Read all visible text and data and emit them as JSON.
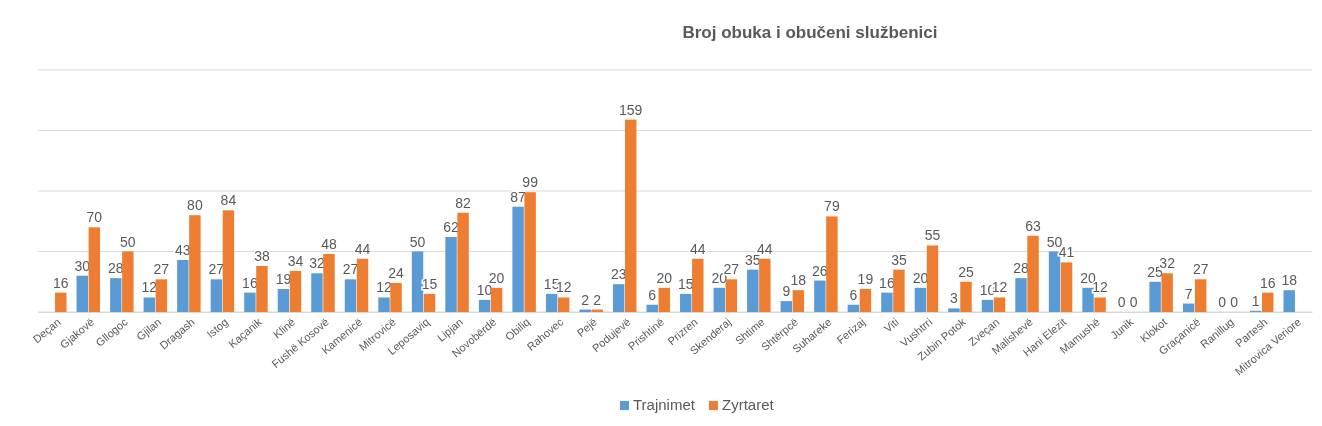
{
  "chart_data": {
    "type": "bar",
    "title": "Broj obuka i obučeni službenici",
    "categories": [
      "Deçan",
      "Gjakovë",
      "Gllogoc",
      "Gjilan",
      "Dragash",
      "Istog",
      "Kaçanik",
      "Klinë",
      "Fushë Kosovë",
      "Kamenicë",
      "Mitrovicë",
      "Leposaviq",
      "Lipjan",
      "Novobërdë",
      "Obiliq",
      "Rahovec",
      "Pejë",
      "Podujevë",
      "Prishtinë",
      "Prizren",
      "Skenderaj",
      "Shtime",
      "Shtërpcë",
      "Suhareke",
      "Ferizaj",
      "Viti",
      "Vushtrri",
      "Zubin Potok",
      "Zveçan",
      "Malishevë",
      "Hani Elezit",
      "Mamushë",
      "Junik",
      "Klokot",
      "Graçanicë",
      "Ranillug",
      "Partesh",
      "Mitrovica Veriore"
    ],
    "series": [
      {
        "name": "Trajnimet",
        "color": "#5b9bd5",
        "values": [
          null,
          30,
          28,
          12,
          43,
          27,
          16,
          19,
          32,
          27,
          12,
          50,
          62,
          10,
          87,
          15,
          2,
          23,
          6,
          15,
          20,
          35,
          9,
          26,
          6,
          16,
          20,
          3,
          10,
          28,
          50,
          20,
          0,
          25,
          7,
          0,
          1,
          18
        ]
      },
      {
        "name": "Zyrtaret",
        "color": "#ed7d31",
        "values": [
          16,
          70,
          50,
          27,
          80,
          84,
          38,
          34,
          48,
          44,
          24,
          15,
          82,
          20,
          99,
          12,
          2,
          159,
          20,
          44,
          27,
          44,
          18,
          79,
          19,
          35,
          55,
          25,
          12,
          63,
          41,
          12,
          0,
          32,
          27,
          0,
          16,
          null
        ]
      }
    ],
    "ylim": [
      0,
      200
    ],
    "yticks": [
      {
        "value": 0,
        "label": null
      },
      {
        "value": 50,
        "label": null
      },
      {
        "value": 100,
        "label": null
      },
      {
        "value": 150,
        "label": null
      },
      {
        "value": 200,
        "label": null
      }
    ],
    "tick_labels": "x",
    "grid": "y",
    "data_labels": true,
    "legend": "bottom"
  }
}
